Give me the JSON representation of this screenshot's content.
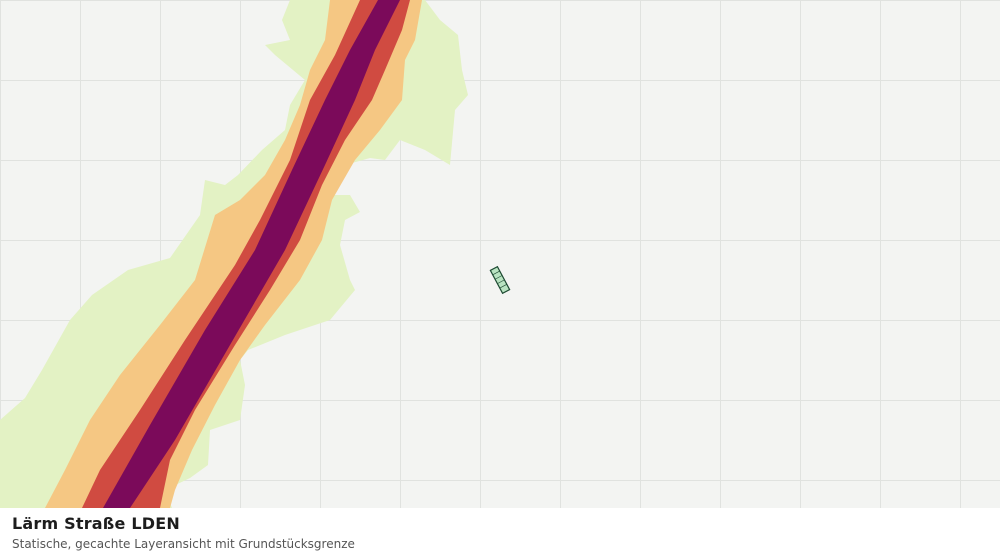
{
  "footer": {
    "title": "Lärm Straße LDEN",
    "subtitle": "Statische, gecachte Layeransicht mit Grundstücksgrenze"
  }
}
